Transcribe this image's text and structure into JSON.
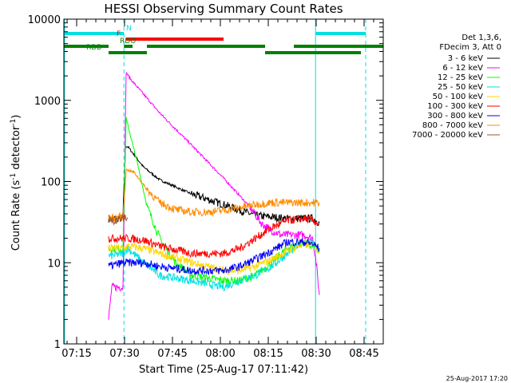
{
  "chart_data": {
    "type": "line",
    "title": "HESSI Observing Summary Count Rates",
    "xlabel": "Start Time (25-Aug-17 07:11:42)",
    "ylabel": "Count Rate (s⁻¹ detector⁻¹)",
    "ylabel_main": "Count Rate (s",
    "ylabel_sup1": "-1",
    "ylabel_mid": " detector",
    "ylabel_sup2": "-1",
    "ylabel_end": ")",
    "y_scale": "log",
    "ylim": [
      1,
      10000
    ],
    "xlim_minutes_after_0711": [
      0,
      100
    ],
    "x_ticks": [
      "07:15",
      "07:30",
      "07:45",
      "08:00",
      "08:15",
      "08:30",
      "08:45"
    ],
    "x_tick_minutes": [
      4,
      19,
      34,
      49,
      64,
      79,
      94
    ],
    "y_ticks": [
      "1",
      "10",
      "100",
      "1000",
      "10000"
    ],
    "y_tick_values": [
      1,
      10,
      100,
      1000,
      10000
    ],
    "legend_header": [
      "Det 1,3,6,",
      "FDecim 3, Att 0"
    ],
    "legend_placement": "right",
    "footer_date": "25-Aug-2017 17:20",
    "flags": [
      {
        "label": "N",
        "color": "#00e0e0",
        "segments": [
          [
            0,
            18.8
          ],
          [
            78.8,
            94.5
          ]
        ]
      },
      {
        "label": "F",
        "color": "#ff0000",
        "segments": [
          [
            19.5,
            50
          ]
        ]
      },
      {
        "label": "RDO",
        "color": "#008000",
        "segments": [
          [
            0,
            14
          ],
          [
            18.8,
            21.5
          ],
          [
            26,
            63
          ],
          [
            72,
            100
          ]
        ]
      },
      {
        "label": "RDB",
        "color": "#008000",
        "segments": [
          [
            14,
            26
          ],
          [
            63,
            93
          ]
        ]
      }
    ],
    "vertical_lines": [
      {
        "minute": 0.2,
        "color": "#00e0e0",
        "style": "solid"
      },
      {
        "minute": 18.8,
        "color": "#00e0e0",
        "style": "dashed"
      },
      {
        "minute": 78.8,
        "color": "#00e0e0",
        "style": "solid"
      },
      {
        "minute": 94.5,
        "color": "#00e0e0",
        "style": "dashed"
      }
    ],
    "series": [
      {
        "name": "3 - 6 keV",
        "color": "#000000",
        "x": [
          14,
          18.5,
          19.3,
          20,
          25,
          30,
          40,
          50,
          60,
          70,
          78,
          80
        ],
        "y": [
          35,
          35,
          270,
          270,
          150,
          105,
          70,
          52,
          38,
          35,
          35,
          31
        ]
      },
      {
        "name": "6 - 12 keV",
        "color": "#ff00ff",
        "x": [
          14,
          15,
          17,
          18.5,
          19.5,
          21,
          30,
          40,
          50,
          58,
          62,
          65,
          68,
          72,
          75,
          78,
          79,
          80
        ],
        "y": [
          2,
          5,
          5,
          5,
          2200,
          1800,
          700,
          280,
          110,
          50,
          30,
          25,
          22,
          22,
          22,
          20,
          10,
          4
        ]
      },
      {
        "name": "12 - 25 keV",
        "color": "#00ff00",
        "x": [
          14,
          18.5,
          19.5,
          20,
          23,
          26,
          30,
          35,
          40,
          50,
          55,
          60,
          65,
          70,
          75,
          78,
          80
        ],
        "y": [
          15,
          15,
          600,
          500,
          170,
          50,
          20,
          10,
          7,
          6,
          6,
          7,
          10,
          15,
          18,
          16,
          14
        ]
      },
      {
        "name": "25 - 50 keV",
        "color": "#00e0e0",
        "x": [
          14,
          18.5,
          20,
          25,
          30,
          40,
          50,
          55,
          60,
          65,
          70,
          75,
          78,
          80
        ],
        "y": [
          12,
          13,
          15,
          10,
          7,
          6,
          5,
          6,
          7,
          9,
          13,
          18,
          18,
          14
        ]
      },
      {
        "name": "50 - 100 keV",
        "color": "#ffd700",
        "x": [
          14,
          18.5,
          20,
          25,
          30,
          40,
          50,
          55,
          60,
          65,
          70,
          75,
          78,
          80
        ],
        "y": [
          15,
          15,
          16,
          15,
          13,
          10,
          8,
          8,
          9,
          11,
          14,
          17,
          16,
          14
        ]
      },
      {
        "name": "100 - 300 keV",
        "color": "#ff0000",
        "x": [
          14,
          18.5,
          20,
          25,
          30,
          40,
          50,
          55,
          60,
          65,
          70,
          75,
          78,
          80
        ],
        "y": [
          20,
          20,
          20,
          19,
          16,
          13,
          13,
          15,
          20,
          27,
          33,
          35,
          33,
          30
        ]
      },
      {
        "name": "300 - 800 keV",
        "color": "#0000ff",
        "x": [
          14,
          18.5,
          20,
          25,
          30,
          40,
          50,
          55,
          60,
          65,
          70,
          75,
          78,
          80
        ],
        "y": [
          9,
          10,
          10,
          10,
          9,
          8,
          8,
          9,
          11,
          14,
          18,
          18,
          17,
          15
        ]
      },
      {
        "name": "800 - 7000 keV",
        "color": "#ff8c00",
        "x": [
          14,
          18.5,
          19.5,
          22,
          26,
          30,
          35,
          40,
          45,
          50,
          55,
          60,
          65,
          70,
          75,
          78,
          80
        ],
        "y": [
          35,
          37,
          140,
          130,
          80,
          55,
          45,
          42,
          42,
          44,
          48,
          52,
          55,
          55,
          55,
          55,
          55
        ]
      },
      {
        "name": "7000 - 20000 keV",
        "color": "#a0522d",
        "x": [
          14,
          18.5,
          19,
          20
        ],
        "y": [
          32,
          35,
          36,
          36
        ]
      }
    ]
  }
}
